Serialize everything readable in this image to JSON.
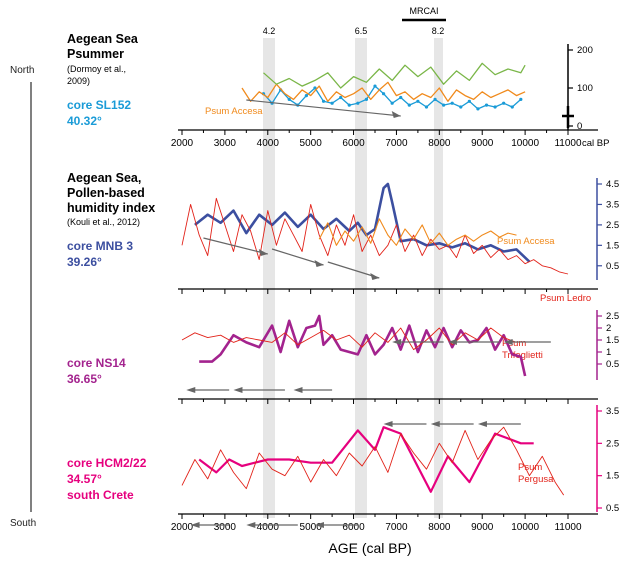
{
  "figure": {
    "north_label": "North",
    "south_label": "South",
    "xlabel": "AGE (cal BP)",
    "events": [
      "4.2",
      "6.5",
      "8.2"
    ],
    "mrcai_label": "MRCAI",
    "colors": {
      "cyan": "#1a9bd7",
      "orange": "#f08a1c",
      "green": "#7ab648",
      "blue": "#3c4fa0",
      "red": "#e2231a",
      "purple": "#a3238e",
      "magenta": "#e6007e",
      "gray_band": "#dcdcdc",
      "arrow": "#777777"
    }
  },
  "panels": {
    "p1": {
      "title_line1": "Aegean Sea",
      "title_line2": "Psummer",
      "citation_line1": "(Dormoy et al.,",
      "citation_line2": "2009)",
      "core_name": "core SL152",
      "core_lat": "40.32°",
      "series_label": "Psum Accesa",
      "x_axis_unit": "cal BP",
      "x_ticks": [
        "2000",
        "3000",
        "4000",
        "5000",
        "6000",
        "7000",
        "8000",
        "9000",
        "10000",
        "11000"
      ],
      "y_ticks": [
        "200",
        "100",
        "0"
      ]
    },
    "p2": {
      "title_line1": "Aegean Sea,",
      "title_line2": "Pollen-based",
      "title_line3": "humidity index",
      "citation": "(Kouli et al., 2012)",
      "core_name": "core MNB 3",
      "core_lat": "39.26°",
      "series_label_accesa": "Psum Accesa",
      "series_label_ledro": "Psum Ledro",
      "y_ticks": [
        "4.5",
        "3.5",
        "2.5",
        "1.5",
        "0.5"
      ]
    },
    "p3": {
      "core_name": "core NS14",
      "core_lat": "36.65°",
      "series_label_line1": "Psum",
      "series_label_line2": "Trifoglietti",
      "y_ticks": [
        "2.5",
        "2",
        "1.5",
        "1",
        "0.5"
      ]
    },
    "p4": {
      "core_name": "core HCM2/22",
      "core_lat": "34.57°",
      "core_extra": "south Crete",
      "series_label_line1": "Psum",
      "series_label_line2": "Pergusa",
      "x_ticks": [
        "2000",
        "3000",
        "4000",
        "5000",
        "6000",
        "7000",
        "8000",
        "9000",
        "10000",
        "11000"
      ],
      "y_ticks": [
        "3.5",
        "2.5",
        "1.5",
        "0.5"
      ]
    }
  },
  "chart_data": [
    {
      "type": "line",
      "panel": "p1",
      "title": "Aegean Sea Psummer",
      "xlabel": "cal BP",
      "xlim": [
        2000,
        11000
      ],
      "ylim": [
        0,
        200
      ],
      "series": [
        {
          "name": "core SL152",
          "color": "#1a9bd7",
          "x": [
            3900,
            4100,
            4300,
            4500,
            4700,
            4900,
            5100,
            5300,
            5500,
            5700,
            5900,
            6100,
            6300,
            6500,
            6700,
            6900,
            7100,
            7300,
            7500,
            7700,
            7900,
            8100,
            8300,
            8500,
            8700,
            8900,
            9100,
            9300,
            9500,
            9700,
            9900
          ],
          "y": [
            85,
            60,
            95,
            70,
            55,
            80,
            100,
            65,
            60,
            75,
            55,
            60,
            70,
            105,
            85,
            60,
            75,
            55,
            65,
            50,
            70,
            55,
            60,
            50,
            65,
            45,
            55,
            50,
            60,
            50,
            70
          ]
        },
        {
          "name": "Psum Accesa",
          "color": "#f08a1c",
          "x": [
            3400,
            3600,
            3800,
            4000,
            4200,
            4400,
            4600,
            4800,
            5000,
            5200,
            5400,
            5600,
            5800,
            6000,
            6200,
            6400,
            6600,
            6800,
            7000,
            7200,
            7400,
            7600,
            7800,
            8000,
            8200,
            8400,
            8600,
            8800,
            9000,
            9200,
            9400,
            9600,
            9800,
            10000
          ],
          "y": [
            100,
            65,
            90,
            75,
            110,
            85,
            70,
            95,
            80,
            105,
            65,
            90,
            75,
            85,
            100,
            70,
            95,
            115,
            80,
            90,
            70,
            85,
            75,
            100,
            65,
            95,
            80,
            70,
            90,
            75,
            85,
            95,
            80,
            90
          ]
        },
        {
          "name": "",
          "color": "#7ab648",
          "x": [
            3900,
            4200,
            4500,
            4800,
            5100,
            5400,
            5700,
            6000,
            6300,
            6600,
            6900,
            7200,
            7500,
            7800,
            8100,
            8400,
            8700,
            9000,
            9300,
            9600,
            9900,
            10000
          ],
          "y": [
            140,
            110,
            125,
            105,
            120,
            140,
            100,
            130,
            115,
            150,
            120,
            160,
            130,
            155,
            110,
            145,
            120,
            165,
            135,
            150,
            140,
            160
          ]
        }
      ],
      "trend_segments": [
        [
          3500,
          7100
        ]
      ]
    },
    {
      "type": "line",
      "panel": "p2",
      "title": "Aegean Sea, Pollen-based humidity index",
      "xlim": [
        2000,
        11000
      ],
      "ylim": [
        0,
        4.5
      ],
      "series": [
        {
          "name": "core MNB 3",
          "color": "#3c4fa0",
          "x": [
            2300,
            2600,
            2900,
            3200,
            3500,
            3800,
            4100,
            4400,
            4700,
            5000,
            5300,
            5600,
            5900,
            6100,
            6300,
            6500,
            6700,
            6800,
            6900,
            7100,
            7400,
            7700,
            8000,
            8300,
            8600,
            8900,
            9200,
            9500,
            9800,
            10100
          ],
          "y": [
            2.5,
            3.0,
            2.6,
            3.2,
            2.1,
            3.0,
            2.5,
            3.1,
            2.4,
            3.0,
            2.3,
            2.8,
            2.2,
            2.6,
            2.0,
            2.3,
            4.3,
            4.5,
            3.6,
            1.7,
            1.8,
            1.5,
            1.6,
            1.4,
            1.6,
            1.3,
            1.5,
            1.2,
            1.3,
            0.7
          ]
        },
        {
          "name": "Psum Ledro",
          "color": "#e2231a",
          "x": [
            2000,
            2200,
            2400,
            2600,
            2800,
            3000,
            3200,
            3400,
            3600,
            3800,
            4000,
            4200,
            4400,
            4600,
            4800,
            5000,
            5200,
            5400,
            5600,
            5800,
            6000,
            6200,
            6400,
            6600,
            6800,
            7000,
            7200,
            7400,
            7600,
            7800,
            8000,
            8200,
            8400,
            8600,
            8800,
            9000,
            9200,
            9400,
            9600,
            9800,
            10000,
            10200,
            10400,
            10600,
            10800,
            11000
          ],
          "y": [
            1.5,
            3.5,
            2.0,
            1.0,
            3.8,
            2.5,
            1.2,
            3.0,
            2.2,
            0.8,
            3.2,
            1.5,
            2.8,
            2.0,
            1.2,
            3.5,
            2.0,
            1.0,
            2.5,
            1.5,
            3.0,
            1.2,
            2.0,
            1.0,
            1.5,
            2.5,
            1.2,
            2.0,
            1.0,
            1.8,
            1.3,
            1.5,
            0.9,
            2.0,
            1.1,
            1.5,
            0.9,
            1.3,
            0.8,
            1.0,
            0.6,
            0.8,
            0.5,
            0.4,
            0.2,
            0.1
          ]
        },
        {
          "name": "Psum Accesa",
          "color": "#f08a1c",
          "x": [
            5200,
            5400,
            5600,
            5800,
            6000,
            6200,
            6400,
            6600,
            6800,
            7000,
            7200,
            7400,
            7600,
            7800,
            8000,
            8200,
            8400,
            8600,
            8800,
            9000,
            9200,
            9400,
            9600,
            9800
          ],
          "y": [
            1.8,
            2.6,
            1.5,
            2.2,
            1.7,
            2.4,
            1.6,
            2.8,
            2.0,
            1.5,
            2.3,
            1.8,
            2.5,
            1.6,
            2.1,
            1.5,
            1.8,
            2.0,
            1.7,
            2.0,
            2.2,
            1.9,
            2.1,
            2.0
          ]
        }
      ],
      "trend_segments": [
        [
          2500,
          4000
        ],
        [
          4100,
          5300
        ],
        [
          5400,
          6600
        ]
      ]
    },
    {
      "type": "line",
      "panel": "p3",
      "xlim": [
        2000,
        11000
      ],
      "ylim": [
        0,
        2.5
      ],
      "series": [
        {
          "name": "core NS14",
          "color": "#a3238e",
          "x": [
            2400,
            2700,
            2900,
            3200,
            3500,
            3800,
            4100,
            4300,
            4500,
            4700,
            4900,
            5100,
            5200,
            5300,
            5500,
            5700,
            5900,
            6100,
            6300,
            6500,
            6700,
            6900,
            7100,
            7300,
            7500,
            7700,
            7900,
            8100,
            8300,
            8500,
            8700,
            8900,
            9100,
            9300,
            9500,
            9700,
            9900,
            10000
          ],
          "y": [
            0.6,
            0.6,
            0.9,
            1.7,
            1.4,
            1.2,
            2.1,
            1.0,
            2.3,
            1.2,
            2.0,
            2.1,
            2.5,
            1.3,
            1.7,
            1.1,
            1.0,
            0.9,
            1.7,
            0.9,
            1.3,
            2.0,
            1.1,
            2.1,
            1.0,
            1.9,
            1.2,
            2.0,
            1.2,
            1.9,
            1.4,
            1.5,
            2.0,
            1.1,
            1.7,
            0.9,
            0.8,
            0.0
          ]
        },
        {
          "name": "Psum Trifoglietti",
          "color": "#e2231a",
          "x": [
            2000,
            2300,
            2600,
            2900,
            3200,
            3500,
            3800,
            4100,
            4400,
            4700,
            5000,
            5300,
            5600,
            5900,
            6200,
            6500,
            6800,
            7100,
            7400,
            7700,
            8000,
            8300,
            8600,
            8900,
            9200,
            9500,
            9800
          ],
          "y": [
            1.5,
            1.8,
            1.6,
            1.7,
            1.4,
            1.6,
            1.5,
            1.4,
            1.8,
            1.3,
            1.6,
            1.9,
            1.5,
            1.7,
            1.2,
            1.8,
            1.4,
            2.0,
            1.1,
            1.5,
            2.0,
            1.3,
            1.8,
            1.5,
            2.0,
            1.6,
            1.4
          ]
        }
      ],
      "trend_segments": [
        [
          2100,
          3100
        ],
        [
          3200,
          4400
        ],
        [
          4600,
          5500
        ],
        [
          6900,
          8100
        ],
        [
          8200,
          9400
        ],
        [
          9500,
          10600
        ]
      ]
    },
    {
      "type": "line",
      "panel": "p4",
      "xlabel": "AGE (cal BP)",
      "xlim": [
        2000,
        11000
      ],
      "ylim": [
        0.5,
        3.5
      ],
      "series": [
        {
          "name": "core HCM2/22",
          "color": "#e6007e",
          "x": [
            2400,
            2800,
            3100,
            3400,
            3700,
            4000,
            4500,
            5000,
            5500,
            6100,
            6500,
            6700,
            7100,
            7800,
            8200,
            8700,
            9300,
            9900,
            10200
          ],
          "y": [
            2.0,
            1.6,
            2.0,
            1.8,
            1.9,
            2.0,
            2.0,
            1.9,
            1.9,
            2.9,
            2.3,
            3.0,
            2.8,
            1.0,
            2.1,
            1.3,
            2.8,
            2.5,
            2.5
          ]
        },
        {
          "name": "Psum Pergusa",
          "color": "#e2231a",
          "x": [
            2000,
            2300,
            2600,
            2900,
            3200,
            3500,
            3800,
            4100,
            4400,
            4700,
            5000,
            5300,
            5600,
            5900,
            6200,
            6500,
            6800,
            7100,
            7400,
            7700,
            8000,
            8300,
            8600,
            8900,
            9200,
            9500,
            9800,
            10100,
            10400,
            10700,
            10900
          ],
          "y": [
            1.2,
            2.0,
            1.4,
            2.3,
            1.6,
            1.1,
            2.2,
            1.7,
            1.5,
            2.1,
            1.3,
            2.0,
            1.5,
            2.2,
            1.8,
            2.4,
            1.6,
            2.8,
            2.2,
            1.7,
            2.5,
            1.9,
            2.9,
            2.0,
            2.6,
            3.0,
            2.3,
            1.5,
            2.1,
            1.3,
            0.9
          ]
        }
      ],
      "trend_segments": [
        [
          2200,
          3100
        ],
        [
          3500,
          4700
        ],
        [
          5100,
          6100
        ],
        [
          6700,
          7700
        ],
        [
          7800,
          8800
        ],
        [
          8900,
          9900
        ]
      ]
    }
  ]
}
